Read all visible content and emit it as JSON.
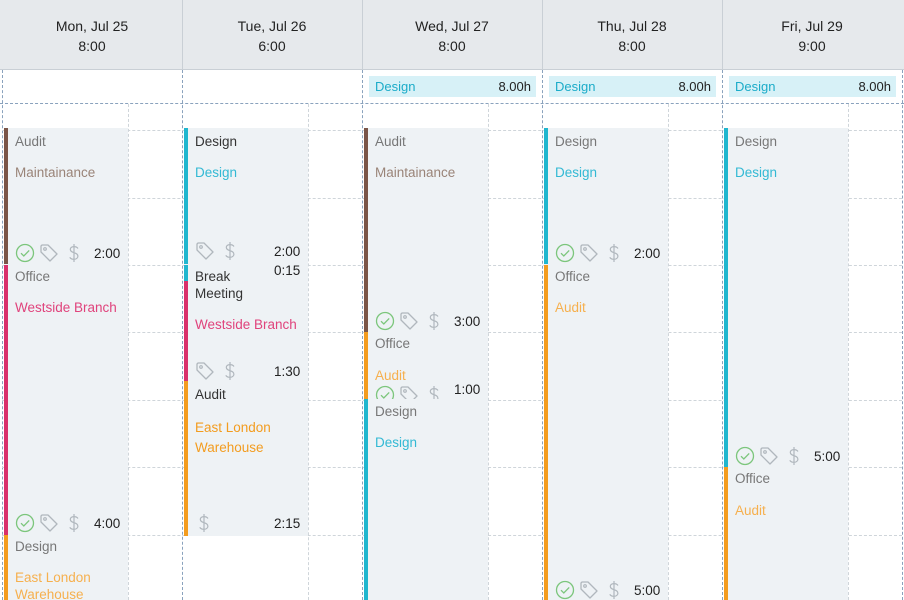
{
  "days": [
    {
      "date": "Mon, Jul 25",
      "hours": "8:00"
    },
    {
      "date": "Tue, Jul 26",
      "hours": "6:00"
    },
    {
      "date": "Wed, Jul 27",
      "hours": "8:00"
    },
    {
      "date": "Thu, Jul 28",
      "hours": "8:00"
    },
    {
      "date": "Fri, Jul 29",
      "hours": "9:00"
    }
  ],
  "allday": {
    "wed": {
      "label": "Design",
      "hours": "8.00h"
    },
    "thu": {
      "label": "Design",
      "hours": "8.00h"
    },
    "fri": {
      "label": "Design",
      "hours": "8.00h"
    }
  },
  "entries": {
    "mon": [
      {
        "project": "Audit",
        "task": "Maintainance",
        "duration": "2:00"
      },
      {
        "project": "Office",
        "task": "Westside Branch",
        "duration": "4:00"
      },
      {
        "project": "Design",
        "task": "East London Warehouse"
      }
    ],
    "tue": [
      {
        "project": "Design",
        "task": "Design",
        "duration": "2:00"
      },
      {
        "project": "Break Meeting",
        "task": "Westside Branch",
        "duration": "0:15"
      },
      {
        "project": "Audit",
        "task": "East London Warehouse",
        "duration": "1:30"
      },
      {
        "duration": "2:15"
      }
    ],
    "wed": [
      {
        "project": "Audit",
        "task": "Maintainance",
        "duration": "3:00"
      },
      {
        "project": "Office",
        "task": "Audit",
        "duration": "1:00"
      },
      {
        "project": "Design",
        "task": "Design"
      }
    ],
    "thu": [
      {
        "project": "Design",
        "task": "Design",
        "duration": "2:00"
      },
      {
        "project": "Office",
        "task": "Audit",
        "duration": "5:00"
      }
    ],
    "fri": [
      {
        "project": "Design",
        "task": "Design",
        "duration": "5:00"
      },
      {
        "project": "Office",
        "task": "Audit"
      }
    ]
  },
  "icons": [
    "check-circle-icon",
    "tag-icon",
    "dollar-icon"
  ],
  "colors": {
    "brown": "#7a5548",
    "cyan": "#1fb6cf",
    "pink": "#d9306b",
    "orange": "#f39c1f",
    "header_bg": "#e6e9ec",
    "allday_bg": "#d7f1f7"
  }
}
